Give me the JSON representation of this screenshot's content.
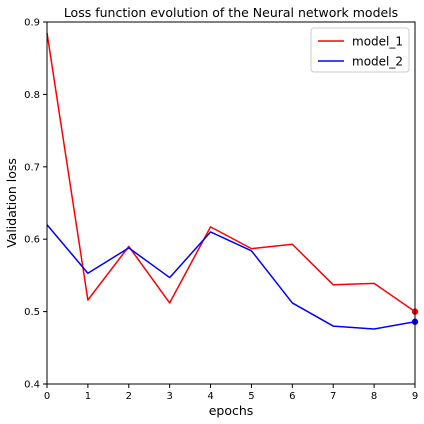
{
  "chart_data": {
    "type": "line",
    "title": "Loss function evolution of the Neural network models",
    "xlabel": "epochs",
    "ylabel": "Validation loss",
    "x": [
      0,
      1,
      2,
      3,
      4,
      5,
      6,
      7,
      8,
      9
    ],
    "xlim": [
      0,
      9
    ],
    "ylim": [
      0.4,
      0.9
    ],
    "xticks": [
      "0",
      "1",
      "2",
      "3",
      "4",
      "5",
      "6",
      "7",
      "8",
      "9"
    ],
    "yticks": [
      "0.4",
      "0.5",
      "0.6",
      "0.7",
      "0.8",
      "0.9"
    ],
    "grid": false,
    "legend_position": "top-right",
    "series": [
      {
        "name": "model_1",
        "color": "#ff0000",
        "values": [
          0.885,
          0.516,
          0.59,
          0.512,
          0.617,
          0.587,
          0.593,
          0.537,
          0.539,
          0.5
        ],
        "end_marker": true
      },
      {
        "name": "model_2",
        "color": "#0000ff",
        "values": [
          0.62,
          0.553,
          0.588,
          0.547,
          0.61,
          0.584,
          0.512,
          0.48,
          0.476,
          0.486
        ],
        "end_marker": true
      }
    ]
  }
}
